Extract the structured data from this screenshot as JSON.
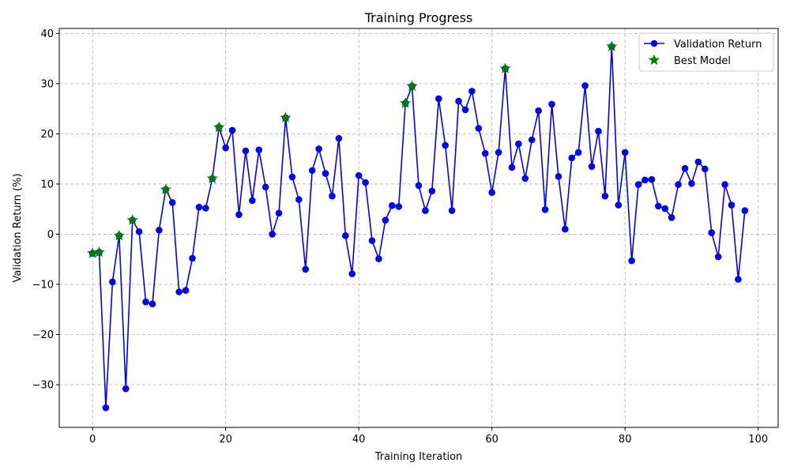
{
  "chart_data": {
    "type": "line",
    "title": "Training Progress",
    "xlabel": "Training Iteration",
    "ylabel": "Validation Return (%)",
    "xlim": [
      -5,
      103
    ],
    "ylim": [
      -38.5,
      41
    ],
    "xticks": [
      0,
      20,
      40,
      60,
      80,
      100
    ],
    "yticks": [
      -30,
      -20,
      -10,
      0,
      10,
      20,
      30,
      40
    ],
    "grid": true,
    "legend_position": "top-right",
    "series": [
      {
        "name": "Validation Return",
        "color": "#0000ff",
        "marker": "circle",
        "x": [
          0,
          1,
          2,
          3,
          4,
          5,
          6,
          7,
          8,
          9,
          10,
          11,
          12,
          13,
          14,
          15,
          16,
          17,
          18,
          19,
          20,
          21,
          22,
          23,
          24,
          25,
          26,
          27,
          28,
          29,
          30,
          31,
          32,
          33,
          34,
          35,
          36,
          37,
          38,
          39,
          40,
          41,
          42,
          43,
          44,
          45,
          46,
          47,
          48,
          49,
          50,
          51,
          52,
          53,
          54,
          55,
          56,
          57,
          58,
          59,
          60,
          61,
          62,
          63,
          64,
          65,
          66,
          67,
          68,
          69,
          70,
          71,
          72,
          73,
          74,
          75,
          76,
          77,
          78,
          79,
          80,
          81,
          82,
          83,
          84,
          85,
          86,
          87,
          88,
          89,
          90,
          91,
          92,
          93,
          94,
          95,
          96,
          97,
          98
        ],
        "values": [
          -3.8,
          -3.6,
          -34.6,
          -9.5,
          -0.3,
          -30.8,
          2.8,
          0.5,
          -13.5,
          -13.9,
          0.8,
          8.9,
          6.3,
          -11.5,
          -11.2,
          -4.8,
          5.4,
          5.2,
          11.1,
          21.3,
          17.2,
          20.7,
          3.9,
          16.6,
          6.7,
          16.8,
          9.4,
          0.0,
          4.2,
          23.2,
          11.4,
          6.9,
          -7.0,
          12.7,
          17.0,
          12.1,
          7.6,
          19.1,
          -0.3,
          -7.9,
          11.7,
          10.3,
          -1.3,
          -4.9,
          2.8,
          5.7,
          5.5,
          26.1,
          29.5,
          9.7,
          4.7,
          8.6,
          27.0,
          17.7,
          4.7,
          26.5,
          24.8,
          28.5,
          21.1,
          16.1,
          8.3,
          16.3,
          33.0,
          13.3,
          18.0,
          11.1,
          18.8,
          24.6,
          4.9,
          25.9,
          11.5,
          1.0,
          15.2,
          16.3,
          29.6,
          13.5,
          20.5,
          7.6,
          37.4,
          5.8,
          16.3,
          -5.3,
          9.9,
          10.8,
          10.9,
          5.6,
          5.1,
          3.3,
          9.9,
          13.1,
          10.1,
          14.4,
          13.0,
          0.3,
          -4.5,
          9.9,
          5.8,
          -9.0,
          4.7
        ]
      },
      {
        "name": "Best Model",
        "color": "#008000",
        "marker": "star",
        "x": [
          0,
          1,
          4,
          6,
          11,
          18,
          19,
          29,
          47,
          48,
          62,
          78
        ],
        "values": [
          -3.8,
          -3.6,
          -0.3,
          2.8,
          8.9,
          11.1,
          21.3,
          23.2,
          26.1,
          29.5,
          33.0,
          37.4
        ]
      }
    ]
  }
}
